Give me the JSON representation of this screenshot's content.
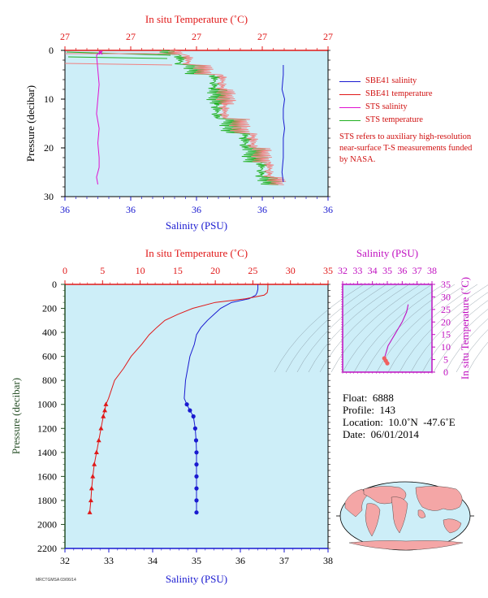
{
  "colors": {
    "plot_bg": "#cdeef8",
    "salinity": "#1a1ad0",
    "temperature": "#e01818",
    "sts_salinity": "#e010d0",
    "sts_temperature": "#20b020",
    "magenta": "#c010c0",
    "pressure_axis": "#285028"
  },
  "top_panel": {
    "top_axis_title": "In situ Temperature (˚C)",
    "top_ticks": [
      "27",
      "27",
      "27",
      "27",
      "27"
    ],
    "bottom_axis_title": "Salinity (PSU)",
    "bottom_ticks": [
      "36",
      "36",
      "36",
      "36",
      "36"
    ],
    "y_axis_title": "Pressure (decibar)",
    "y_ticks": [
      "0",
      "10",
      "20",
      "30"
    ],
    "legend": [
      {
        "label": "SBE41 salinity",
        "color": "#1a1ad0"
      },
      {
        "label": "SBE41 temperature",
        "color": "#e01818"
      },
      {
        "label": "STS salinity",
        "color": "#e010d0"
      },
      {
        "label": "STS temperature",
        "color": "#20b020"
      }
    ],
    "note": "STS refers to auxiliary high-resolution near-surface T-S measurements funded by NASA."
  },
  "bottom_panel": {
    "top_axis_title": "In situ Temperature (˚C)",
    "top_ticks": [
      "0",
      "5",
      "10",
      "15",
      "20",
      "25",
      "30",
      "35"
    ],
    "bottom_axis_title": "Salinity (PSU)",
    "bottom_ticks": [
      "32",
      "33",
      "34",
      "35",
      "36",
      "37",
      "38"
    ],
    "y_axis_title": "Pressure (decibar)",
    "y_ticks": [
      "0",
      "200",
      "400",
      "600",
      "800",
      "1000",
      "1200",
      "1400",
      "1600",
      "1800",
      "2000",
      "2200"
    ]
  },
  "ts_inset": {
    "top_axis_title": "Salinity (PSU)",
    "top_ticks": [
      "32",
      "33",
      "34",
      "35",
      "36",
      "37",
      "38"
    ],
    "right_axis_title": "In situ Temperature (˚C)",
    "right_ticks": [
      "0",
      "5",
      "10",
      "15",
      "20",
      "25",
      "30",
      "35"
    ]
  },
  "info": {
    "float_label": "Float:",
    "float_value": "6888",
    "profile_label": "Profile:",
    "profile_value": "143",
    "location_label": "Location:",
    "location_value": "10.0˚N  -47.6˚E",
    "date_label": "Date:",
    "date_value": "06/01/2014"
  },
  "footer": "MRCTGMSA 03/06/14",
  "chart_data": [
    {
      "type": "line",
      "title": "",
      "xlabel": "Salinity (PSU)",
      "ylabel": "Pressure (decibar)",
      "ylim": [
        0,
        2200
      ],
      "xlim": [
        32,
        38
      ],
      "series": [
        {
          "name": "Salinity (PSU)",
          "x": [
            36.4,
            36.4,
            36.38,
            36.35,
            36.2,
            35.8,
            35.55,
            35.4,
            35.25,
            35.1,
            35.0,
            34.95,
            34.85,
            34.8,
            34.75,
            34.72,
            34.78,
            34.85,
            34.93,
            34.97,
            34.99,
            35.0,
            35.0,
            35.0,
            35.0,
            35.0,
            35.0
          ],
          "y": [
            0,
            40,
            70,
            90,
            120,
            150,
            200,
            250,
            300,
            360,
            420,
            500,
            600,
            700,
            800,
            950,
            1000,
            1050,
            1100,
            1200,
            1300,
            1400,
            1500,
            1600,
            1700,
            1800,
            1900
          ]
        },
        {
          "name": "In situ Temperature (˚C)",
          "x": [
            27.0,
            27.0,
            26.9,
            26.5,
            24.0,
            20.0,
            17.0,
            15.0,
            13.3,
            12.2,
            11.2,
            10.2,
            8.8,
            7.8,
            6.6,
            5.8,
            5.45,
            5.3,
            5.1,
            4.8,
            4.5,
            4.2,
            3.9,
            3.7,
            3.55,
            3.45,
            3.3
          ],
          "y": [
            0,
            40,
            70,
            90,
            120,
            150,
            200,
            250,
            300,
            360,
            420,
            500,
            600,
            700,
            800,
            950,
            1000,
            1050,
            1100,
            1200,
            1300,
            1400,
            1500,
            1600,
            1700,
            1800,
            1900
          ]
        }
      ]
    },
    {
      "type": "line",
      "title": "",
      "xlabel": "Salinity (PSU)",
      "ylabel": "Pressure (decibar)",
      "ylim": [
        0,
        30
      ],
      "series": [
        {
          "name": "SBE41 salinity",
          "x": [
            0.83,
            0.83,
            0.825,
            0.835,
            0.83,
            0.83,
            0.835,
            0.83,
            0.83,
            0.83,
            0.825,
            0.83
          ],
          "y": [
            3,
            5,
            8,
            10,
            12,
            14,
            16,
            18,
            20,
            22,
            25,
            27
          ]
        },
        {
          "name": "STS salinity",
          "x": [
            0.14,
            0.12,
            0.125,
            0.13,
            0.125,
            0.12,
            0.13,
            0.125,
            0.13,
            0.13,
            0.12,
            0.125
          ],
          "y": [
            0,
            1,
            4,
            7,
            10,
            13,
            16,
            19,
            22,
            24,
            26,
            27.5
          ]
        }
      ]
    },
    {
      "type": "scatter",
      "title": "",
      "xlabel": "Salinity (PSU)",
      "ylabel": "In situ Temperature (˚C)",
      "xlim": [
        32,
        38
      ],
      "ylim": [
        0,
        35
      ],
      "series": [
        {
          "name": "",
          "x": [
            36.4,
            36.3,
            36.0,
            35.7,
            35.5,
            35.3,
            35.2,
            35.05,
            35.0,
            34.95,
            34.9,
            34.85,
            34.8,
            34.9,
            35.0
          ],
          "y": [
            27.0,
            24.0,
            20.0,
            17.0,
            15.0,
            13.0,
            12.0,
            10.5,
            9.5,
            8.5,
            7.5,
            6.5,
            5.5,
            4.5,
            3.5
          ]
        }
      ]
    }
  ]
}
